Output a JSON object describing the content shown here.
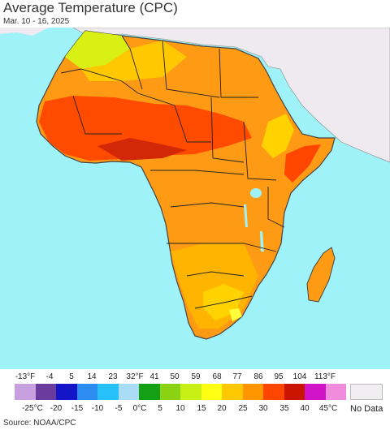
{
  "header": {
    "title": "Average Temperature (CPC)",
    "subtitle": "Mar. 10 - 16, 2025"
  },
  "map": {
    "ocean_color": "#9ff3f8",
    "other_land_color": "#efeaf0",
    "border_color": "#222222"
  },
  "legend": {
    "fahrenheit_labels": [
      "-13°F",
      "-4",
      "5",
      "14",
      "23",
      "32°F",
      "41",
      "50",
      "59",
      "68",
      "77",
      "86",
      "95",
      "104",
      "113°F"
    ],
    "celsius_labels": [
      "-25°C",
      "-20",
      "-15",
      "-10",
      "-5",
      "0°C",
      "5",
      "10",
      "15",
      "20",
      "25",
      "30",
      "35",
      "40",
      "45°C"
    ],
    "colors": [
      "#c8a0e0",
      "#6c3c9c",
      "#1414c8",
      "#2c8cf0",
      "#28c0f8",
      "#aadcf8",
      "#14a014",
      "#8cd214",
      "#c8f014",
      "#ffff14",
      "#ffc800",
      "#ff9600",
      "#ff4600",
      "#c81400",
      "#d214c8",
      "#f08cdc"
    ],
    "no_data_label": "No Data"
  },
  "source": "Source: NOAA/CPC"
}
